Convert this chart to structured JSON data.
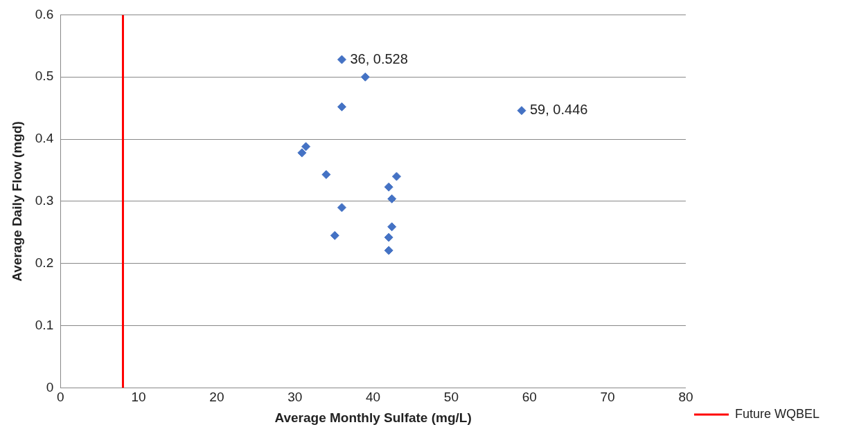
{
  "chart_data": {
    "type": "scatter",
    "xlabel": "Average Monthly Sulfate (mg/L)",
    "ylabel": "Average Daily Flow (mgd)",
    "x": [
      36,
      39,
      36,
      59,
      31.4,
      30.9,
      34,
      43,
      42,
      42.4,
      36,
      42.4,
      35.1,
      42,
      42
    ],
    "series": [
      {
        "color": "#4472c4",
        "values": [
          0.528,
          0.5,
          0.452,
          0.446,
          0.388,
          0.378,
          0.343,
          0.34,
          0.323,
          0.304,
          0.29,
          0.259,
          0.245,
          0.242,
          0.221
        ]
      }
    ],
    "marker": "diamond",
    "xlim": [
      0,
      80
    ],
    "xticks": [
      0,
      10,
      20,
      30,
      40,
      50,
      60,
      70,
      80
    ],
    "ylim": [
      0,
      0.6
    ],
    "yticks": [
      0,
      0.1,
      0.2,
      0.3,
      0.4,
      0.5,
      0.6
    ],
    "grid": "y",
    "legend": "bottom right",
    "ref_lines": [
      {
        "axis": "x",
        "value": 8,
        "label": "Future WQBEL",
        "color": "#ff0000",
        "line_style": "solid"
      }
    ],
    "annotations": [
      {
        "text": "36, 0.528",
        "x": 36,
        "y": 0.528
      },
      {
        "text": "59, 0.446",
        "x": 59,
        "y": 0.446
      }
    ]
  }
}
